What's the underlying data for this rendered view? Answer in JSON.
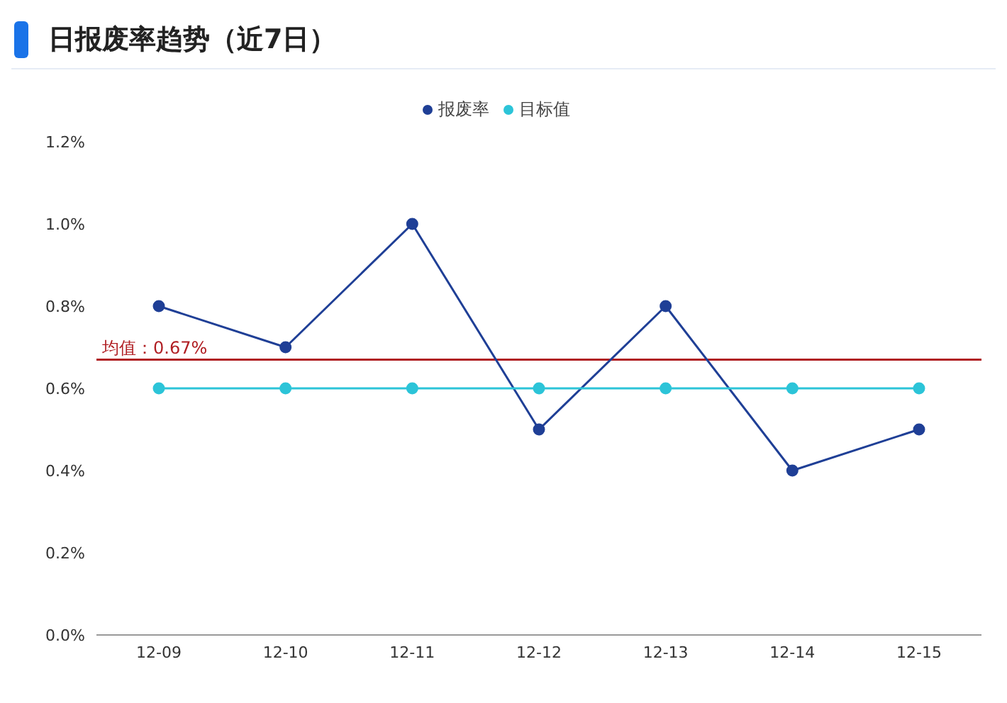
{
  "chart_data": {
    "type": "line",
    "title": "日报废率趋势（近7日）",
    "categories": [
      "12-09",
      "12-10",
      "12-11",
      "12-12",
      "12-13",
      "12-14",
      "12-15"
    ],
    "series": [
      {
        "name": "报废率",
        "color": "#1f3f96",
        "values": [
          0.8,
          0.7,
          1.0,
          0.5,
          0.8,
          0.4,
          0.5
        ]
      },
      {
        "name": "目标值",
        "color": "#2cc4d8",
        "values": [
          0.6,
          0.6,
          0.6,
          0.6,
          0.6,
          0.6,
          0.6
        ]
      }
    ],
    "ylim": [
      0,
      1.2
    ],
    "yticks": [
      {
        "value": 0,
        "label": "0.0%"
      },
      {
        "value": 0.2,
        "label": "0.2%"
      },
      {
        "value": 0.4,
        "label": "0.4%"
      },
      {
        "value": 0.6,
        "label": "0.6%"
      },
      {
        "value": 0.8,
        "label": "0.8%"
      },
      {
        "value": 1.0,
        "label": "1.0%"
      },
      {
        "value": 1.2,
        "label": "1.2%"
      }
    ],
    "ref_lines": [
      {
        "axis": "y",
        "value": 0.67,
        "label": "均值：0.67%",
        "color": "#b01e23"
      }
    ],
    "grid": false,
    "legend": "top",
    "marker": "circle",
    "line_style": "solid"
  }
}
